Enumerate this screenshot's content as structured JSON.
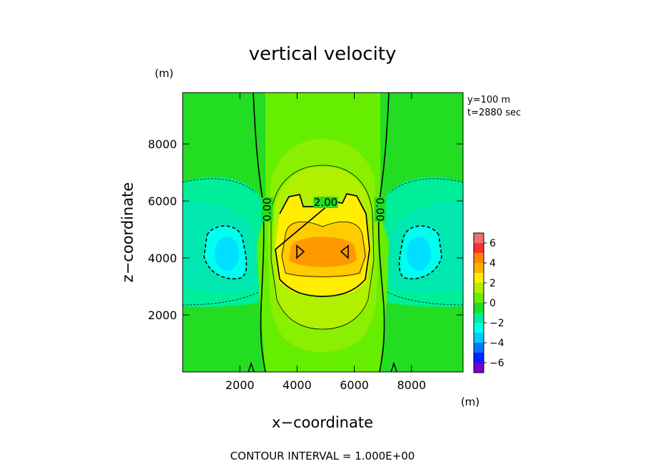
{
  "chart_data": {
    "type": "contour",
    "title": "vertical velocity",
    "xlabel": "x−coordinate",
    "ylabel": "z−coordinate",
    "x_unit": "(m)",
    "y_unit": "(m)",
    "xlim": [
      0,
      9800
    ],
    "ylim": [
      0,
      9800
    ],
    "x_ticks": [
      2000,
      4000,
      6000,
      8000
    ],
    "y_ticks": [
      2000,
      4000,
      6000,
      8000
    ],
    "info_lines": [
      "y=100 m",
      "t=2880 sec"
    ],
    "footer": "CONTOUR INTERVAL = 1.000E+00",
    "contour_interval": 1.0,
    "contour_labels": [
      {
        "text": "0.00",
        "x": 2950,
        "z": 5700,
        "rotation": -90
      },
      {
        "text": "0.00",
        "x": 6900,
        "z": 5700,
        "rotation": 90
      },
      {
        "text": "2.00",
        "x": 5000,
        "z": 5950,
        "rotation": 0
      }
    ],
    "colorbar": {
      "ticks": [
        6,
        4,
        2,
        0,
        -2,
        -4,
        -6
      ],
      "tick_labels": [
        "6",
        "4",
        "2",
        "0",
        "−2",
        "−4",
        "−6"
      ],
      "range": [
        -7,
        7
      ],
      "colors": [
        {
          "from": 6,
          "to": 7,
          "color": "#f07070"
        },
        {
          "from": 5,
          "to": 6,
          "color": "#ff3030"
        },
        {
          "from": 4,
          "to": 5,
          "color": "#ff8800"
        },
        {
          "from": 3,
          "to": 4,
          "color": "#ffb000"
        },
        {
          "from": 2,
          "to": 3,
          "color": "#ffee00"
        },
        {
          "from": 1,
          "to": 2,
          "color": "#b0f000"
        },
        {
          "from": 0,
          "to": 1,
          "color": "#66ee00"
        },
        {
          "from": -1,
          "to": 0,
          "color": "#22dd22"
        },
        {
          "from": -2,
          "to": -1,
          "color": "#00ee99"
        },
        {
          "from": -3,
          "to": -2,
          "color": "#00ffee"
        },
        {
          "from": -4,
          "to": -3,
          "color": "#00ccff"
        },
        {
          "from": -5,
          "to": -4,
          "color": "#0077ff"
        },
        {
          "from": -6,
          "to": -5,
          "color": "#0022ff"
        },
        {
          "from": -7,
          "to": -6,
          "color": "#7700cc"
        }
      ]
    }
  }
}
